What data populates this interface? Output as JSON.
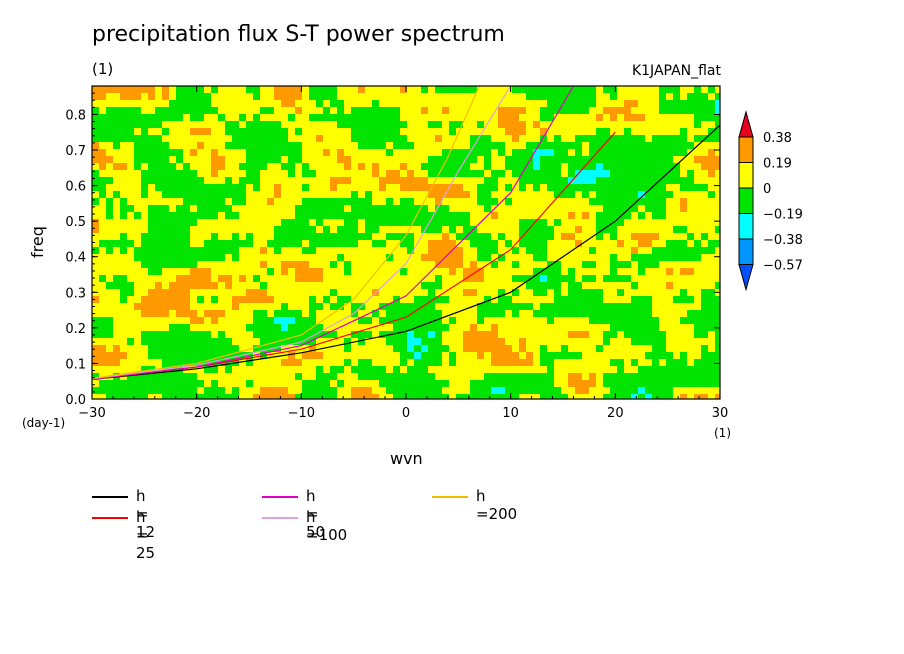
{
  "title": "precipitation flux S-T power spectrum",
  "subtitle": "(1)",
  "model_label": "K1JAPAN_flat",
  "chart_data": {
    "type": "heatmap",
    "xlabel": "wvn",
    "ylabel": "freq",
    "x_unit": "(1)",
    "y_unit": "(day-1)",
    "xlim": [
      -30,
      30
    ],
    "ylim": [
      0.0,
      0.88
    ],
    "x_ticks": [
      "−30",
      "−20",
      "−10",
      "0",
      "10",
      "20",
      "30"
    ],
    "y_ticks": [
      "0.0",
      "0.1",
      "0.2",
      "0.3",
      "0.4",
      "0.5",
      "0.6",
      "0.7",
      "0.8"
    ],
    "colorbar": {
      "labels": [
        "0.38",
        "0.19",
        "0",
        "−0.19",
        "−0.38",
        "−0.57"
      ],
      "colors": [
        "#e8001c",
        "#ff9900",
        "#ffff00",
        "#00e400",
        "#00ffff",
        "#0096ff",
        "#0050ff"
      ]
    },
    "field_levels": [
      -0.57,
      -0.38,
      -0.19,
      0,
      0.19,
      0.38
    ],
    "dispersion_curves": [
      {
        "name": "h = 12",
        "color": "#000000",
        "points": [
          [
            -30,
            0.055
          ],
          [
            -20,
            0.085
          ],
          [
            -10,
            0.13
          ],
          [
            0,
            0.19
          ],
          [
            10,
            0.3
          ],
          [
            20,
            0.5
          ],
          [
            30,
            0.77
          ]
        ]
      },
      {
        "name": "h = 25",
        "color": "#ff0000",
        "points": [
          [
            -30,
            0.055
          ],
          [
            -20,
            0.09
          ],
          [
            -10,
            0.14
          ],
          [
            0,
            0.23
          ],
          [
            10,
            0.42
          ],
          [
            20,
            0.75
          ]
        ]
      },
      {
        "name": "h = 50",
        "color": "#e000c0",
        "points": [
          [
            -30,
            0.056
          ],
          [
            -20,
            0.09
          ],
          [
            -10,
            0.15
          ],
          [
            -5,
            0.22
          ],
          [
            0,
            0.29
          ],
          [
            10,
            0.58
          ],
          [
            16,
            0.88
          ]
        ]
      },
      {
        "name": "h =100",
        "color": "#e0a0e0",
        "points": [
          [
            -30,
            0.057
          ],
          [
            -20,
            0.095
          ],
          [
            -10,
            0.16
          ],
          [
            -5,
            0.24
          ],
          [
            0,
            0.38
          ],
          [
            5,
            0.64
          ],
          [
            10,
            0.88
          ]
        ]
      },
      {
        "name": "h =200",
        "color": "#f0c000",
        "points": [
          [
            -30,
            0.058
          ],
          [
            -20,
            0.1
          ],
          [
            -10,
            0.18
          ],
          [
            -5,
            0.28
          ],
          [
            0,
            0.46
          ],
          [
            4,
            0.68
          ],
          [
            7,
            0.88
          ]
        ]
      }
    ]
  }
}
